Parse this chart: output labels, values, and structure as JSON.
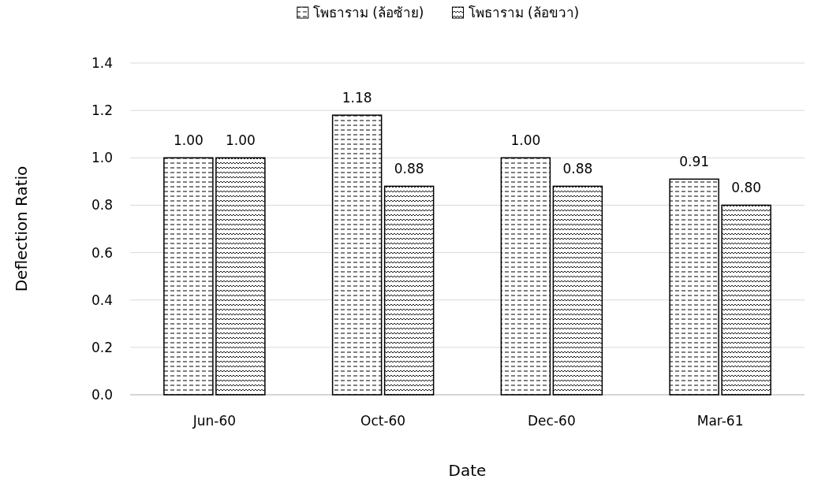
{
  "chart_data": {
    "type": "bar",
    "xlabel": "Date",
    "ylabel": "Deflection Ratio",
    "categories": [
      "Jun-60",
      "Oct-60",
      "Dec-60",
      "Mar-61"
    ],
    "series": [
      {
        "name": "โพธาราม (ล้อซ้าย)",
        "color": "#000000",
        "values": [
          1.0,
          1.18,
          1.0,
          0.91
        ],
        "value_labels": [
          "1.00",
          "1.18",
          "1.00",
          "0.91"
        ]
      },
      {
        "name": "โพธาราม (ล้อขวา)",
        "color": "#000000",
        "values": [
          1.0,
          0.88,
          0.88,
          0.8
        ],
        "value_labels": [
          "1.00",
          "0.88",
          "0.88",
          "0.80"
        ]
      }
    ],
    "ylim": [
      0,
      1.4
    ],
    "yticks": [
      {
        "value": 0,
        "label": "0.0"
      },
      {
        "value": 0.2,
        "label": "0.2"
      },
      {
        "value": 0.4,
        "label": "0.4"
      },
      {
        "value": 0.6,
        "label": "0.6"
      },
      {
        "value": 0.8,
        "label": "0.8"
      },
      {
        "value": 1.0,
        "label": "1.0"
      },
      {
        "value": 1.2,
        "label": "1.2"
      },
      {
        "value": 1.4,
        "label": "1.4"
      }
    ],
    "grid": "y",
    "legend": "top"
  }
}
